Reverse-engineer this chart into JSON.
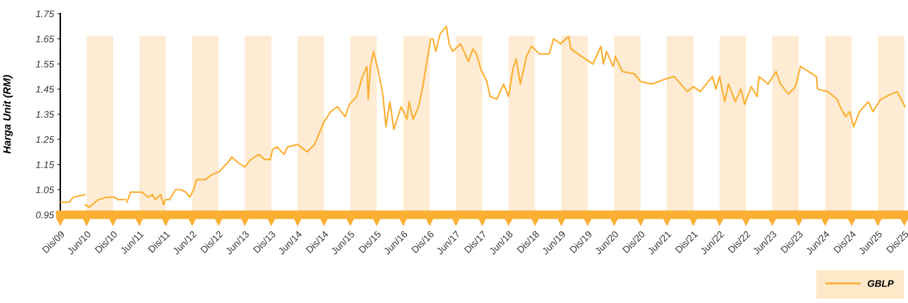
{
  "chart_data": {
    "type": "line",
    "ylabel": "Harga Unit (RM)",
    "x": [
      "2009-12-01",
      "2010-02-01",
      "2010-03-01",
      "2010-05-20",
      "2010-05-21",
      "2010-05-23",
      "2010-06-20",
      "2010-08-20",
      "2010-10-20",
      "2010-12-08",
      "2011-01-08",
      "2011-02-25",
      "2011-03-01",
      "2011-03-08",
      "2011-04-01",
      "2011-06-20",
      "2011-08-01",
      "2011-09-01",
      "2011-09-18",
      "2011-10-27",
      "2011-11-15",
      "2011-11-27",
      "2011-12-27",
      "2012-02-06",
      "2012-03-15",
      "2012-04-18",
      "2012-05-15",
      "2012-06-12",
      "2012-07-01",
      "2012-09-01",
      "2012-10-15",
      "2012-12-03",
      "2013-02-06",
      "2013-03-03",
      "2013-04-09",
      "2013-06-01",
      "2013-07-12",
      "2013-09-06",
      "2013-10-15",
      "2013-11-24",
      "2013-12-10",
      "2014-01-10",
      "2014-02-27",
      "2014-03-24",
      "2014-06-01",
      "2014-08-06",
      "2014-09-27",
      "2014-12-01",
      "2015-01-15",
      "2015-03-03",
      "2015-04-27",
      "2015-05-27",
      "2015-07-15",
      "2015-08-24",
      "2015-09-24",
      "2015-10-03",
      "2015-10-18",
      "2015-11-09",
      "2015-12-12",
      "2016-01-12",
      "2016-02-03",
      "2016-03-01",
      "2016-03-28",
      "2016-05-18",
      "2016-06-27",
      "2016-07-12",
      "2016-08-09",
      "2016-09-15",
      "2016-10-15",
      "2016-11-09",
      "2016-12-09",
      "2016-12-24",
      "2017-01-12",
      "2017-02-12",
      "2017-03-27",
      "2017-04-15",
      "2017-05-09",
      "2017-07-03",
      "2017-08-27",
      "2017-09-27",
      "2017-10-21",
      "2017-11-21",
      "2018-01-01",
      "2018-01-24",
      "2018-03-12",
      "2018-04-27",
      "2018-06-01",
      "2018-07-01",
      "2018-07-24",
      "2018-08-21",
      "2018-10-03",
      "2018-11-06",
      "2019-01-01",
      "2019-03-09",
      "2019-04-09",
      "2019-05-27",
      "2019-07-21",
      "2019-08-06",
      "2019-10-18",
      "2020-01-06",
      "2020-03-01",
      "2020-03-18",
      "2020-04-09",
      "2020-05-24",
      "2020-06-09",
      "2020-07-27",
      "2020-10-21",
      "2020-12-01",
      "2021-02-18",
      "2021-05-21",
      "2021-07-21",
      "2021-10-21",
      "2021-12-01",
      "2022-01-18",
      "2022-04-12",
      "2022-05-06",
      "2022-06-01",
      "2022-07-06",
      "2022-08-01",
      "2022-09-18",
      "2022-10-27",
      "2022-11-21",
      "2023-01-06",
      "2023-02-15",
      "2023-03-01",
      "2023-05-03",
      "2023-06-27",
      "2023-07-27",
      "2023-09-21",
      "2023-11-09",
      "2023-12-12",
      "2024-02-06",
      "2024-04-01",
      "2024-04-09",
      "2024-06-18",
      "2024-08-21",
      "2024-09-21",
      "2024-10-21",
      "2024-11-18",
      "2024-12-15",
      "2025-01-24",
      "2025-03-27",
      "2025-04-27",
      "2025-06-21",
      "2025-09-03",
      "2025-10-12",
      "2025-12-06"
    ],
    "series": [
      {
        "name": "GBLP",
        "color": "#fbb034",
        "values": [
          1.0,
          1.0,
          1.02,
          1.03,
          null,
          0.99,
          0.98,
          1.01,
          1.02,
          1.02,
          1.01,
          1.01,
          null,
          1.0,
          1.04,
          1.04,
          1.02,
          1.03,
          1.01,
          1.03,
          0.99,
          1.01,
          1.01,
          1.05,
          1.05,
          1.04,
          1.02,
          1.05,
          1.09,
          1.09,
          1.11,
          1.12,
          1.16,
          1.18,
          1.16,
          1.14,
          1.17,
          1.19,
          1.17,
          1.17,
          1.21,
          1.22,
          1.19,
          1.22,
          1.23,
          1.2,
          1.23,
          1.32,
          1.36,
          1.38,
          1.34,
          1.39,
          1.42,
          1.5,
          1.54,
          1.41,
          1.54,
          1.6,
          1.52,
          1.43,
          1.3,
          1.4,
          1.29,
          1.38,
          1.33,
          1.4,
          1.33,
          1.38,
          1.46,
          1.55,
          1.65,
          1.65,
          1.6,
          1.67,
          1.7,
          1.63,
          1.6,
          1.63,
          1.56,
          1.61,
          1.59,
          1.53,
          1.48,
          1.42,
          1.41,
          1.47,
          1.42,
          1.53,
          1.57,
          1.47,
          1.58,
          1.62,
          1.59,
          1.59,
          1.65,
          1.63,
          1.66,
          1.61,
          1.58,
          1.55,
          1.62,
          1.55,
          1.6,
          1.54,
          1.58,
          1.52,
          1.51,
          1.48,
          1.47,
          1.49,
          1.5,
          1.44,
          1.46,
          1.44,
          1.5,
          1.45,
          1.5,
          1.4,
          1.47,
          1.4,
          1.45,
          1.39,
          1.46,
          1.42,
          1.5,
          1.47,
          1.52,
          1.47,
          1.43,
          1.46,
          1.54,
          1.52,
          1.5,
          1.45,
          1.44,
          1.41,
          1.37,
          1.34,
          1.36,
          1.3,
          1.36,
          1.4,
          1.36,
          1.41,
          1.43,
          1.44,
          1.38
        ]
      }
    ],
    "xlim": [
      "2009-12-01",
      "2025-12-12"
    ],
    "xticks": [
      {
        "value": "2009-12-01",
        "label": "Dis/09"
      },
      {
        "value": "2010-06-01",
        "label": "Jun/10"
      },
      {
        "value": "2010-12-01",
        "label": "Dis/10"
      },
      {
        "value": "2011-06-01",
        "label": "Jun/11"
      },
      {
        "value": "2011-12-01",
        "label": "Dis/11"
      },
      {
        "value": "2012-06-01",
        "label": "Jun/12"
      },
      {
        "value": "2012-12-01",
        "label": "Dis/12"
      },
      {
        "value": "2013-06-01",
        "label": "Jun/13"
      },
      {
        "value": "2013-12-01",
        "label": "Dis/13"
      },
      {
        "value": "2014-06-01",
        "label": "Jun/14"
      },
      {
        "value": "2014-12-01",
        "label": "Dis/14"
      },
      {
        "value": "2015-06-01",
        "label": "Jun/15"
      },
      {
        "value": "2015-12-01",
        "label": "Dis/15"
      },
      {
        "value": "2016-06-01",
        "label": "Jun/16"
      },
      {
        "value": "2016-12-01",
        "label": "Dis/16"
      },
      {
        "value": "2017-06-01",
        "label": "Jun/17"
      },
      {
        "value": "2017-12-01",
        "label": "Dis/17"
      },
      {
        "value": "2018-06-01",
        "label": "Jun/18"
      },
      {
        "value": "2018-12-01",
        "label": "Dis/18"
      },
      {
        "value": "2019-06-01",
        "label": "Jun/19"
      },
      {
        "value": "2019-12-01",
        "label": "Dis/19"
      },
      {
        "value": "2020-06-01",
        "label": "Jun/20"
      },
      {
        "value": "2020-12-01",
        "label": "Dis/20"
      },
      {
        "value": "2021-06-01",
        "label": "Jun/21"
      },
      {
        "value": "2021-12-01",
        "label": "Dis/21"
      },
      {
        "value": "2022-06-01",
        "label": "Jun/22"
      },
      {
        "value": "2022-12-01",
        "label": "Dis/22"
      },
      {
        "value": "2023-06-01",
        "label": "Jun/23"
      },
      {
        "value": "2023-12-01",
        "label": "Dis/23"
      },
      {
        "value": "2024-06-01",
        "label": "Jun/24"
      },
      {
        "value": "2024-12-01",
        "label": "Dis/24"
      },
      {
        "value": "2025-06-01",
        "label": "Jun/25"
      },
      {
        "value": "2025-12-01",
        "label": "Dis/25"
      }
    ],
    "ylim": [
      0.95,
      1.75
    ],
    "yticks": [
      0.95,
      1.05,
      1.15,
      1.25,
      1.35,
      1.45,
      1.55,
      1.65,
      1.75
    ],
    "bands": [
      {
        "axis": "x",
        "from": "2010-06-01",
        "to": "2010-12-01",
        "color": "#fdebd3"
      },
      {
        "axis": "x",
        "from": "2011-06-01",
        "to": "2011-12-01",
        "color": "#fdebd3"
      },
      {
        "axis": "x",
        "from": "2012-06-01",
        "to": "2012-12-01",
        "color": "#fdebd3"
      },
      {
        "axis": "x",
        "from": "2013-06-01",
        "to": "2013-12-01",
        "color": "#fdebd3"
      },
      {
        "axis": "x",
        "from": "2014-06-01",
        "to": "2014-12-01",
        "color": "#fdebd3"
      },
      {
        "axis": "x",
        "from": "2015-06-01",
        "to": "2015-12-01",
        "color": "#fdebd3"
      },
      {
        "axis": "x",
        "from": "2016-06-01",
        "to": "2016-12-01",
        "color": "#fdebd3"
      },
      {
        "axis": "x",
        "from": "2017-06-01",
        "to": "2017-12-01",
        "color": "#fdebd3"
      },
      {
        "axis": "x",
        "from": "2018-06-01",
        "to": "2018-12-01",
        "color": "#fdebd3"
      },
      {
        "axis": "x",
        "from": "2019-06-01",
        "to": "2019-12-01",
        "color": "#fdebd3"
      },
      {
        "axis": "x",
        "from": "2020-06-01",
        "to": "2020-12-01",
        "color": "#fdebd3"
      },
      {
        "axis": "x",
        "from": "2021-06-01",
        "to": "2021-12-01",
        "color": "#fdebd3"
      },
      {
        "axis": "x",
        "from": "2022-06-01",
        "to": "2022-12-01",
        "color": "#fdebd3"
      },
      {
        "axis": "x",
        "from": "2023-06-01",
        "to": "2023-12-01",
        "color": "#fdebd3"
      },
      {
        "axis": "x",
        "from": "2024-06-01",
        "to": "2024-12-01",
        "color": "#fdebd3"
      },
      {
        "axis": "x",
        "from": "2025-06-01",
        "to": "2025-12-01",
        "color": "#fdebd3"
      }
    ],
    "grid": false,
    "legend": "bottom right",
    "marker": "none",
    "line_style": "solid"
  }
}
